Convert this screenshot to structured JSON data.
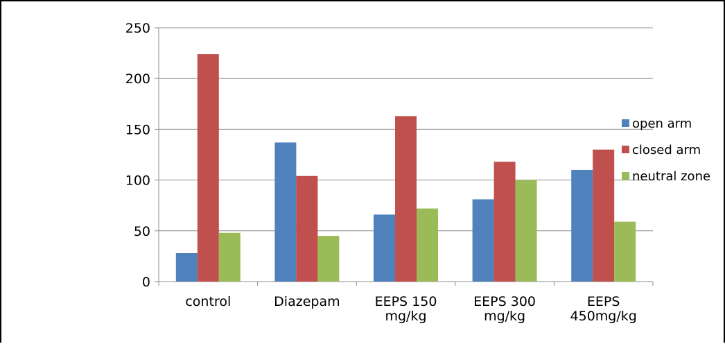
{
  "chart_data": {
    "type": "bar",
    "title": "",
    "xlabel": "",
    "ylabel": "",
    "categories": [
      [
        "control"
      ],
      [
        "Diazepam"
      ],
      [
        "EEPS 150",
        "mg/kg"
      ],
      [
        "EEPS 300",
        "mg/kg"
      ],
      [
        "EEPS",
        "450mg/kg"
      ]
    ],
    "ylim": [
      0,
      250
    ],
    "yticks": [
      0,
      50,
      100,
      150,
      200,
      250
    ],
    "grid": true,
    "legend_position": "right",
    "series": [
      {
        "name": "open arm",
        "color": "#4F81BD",
        "values": [
          28,
          137,
          66,
          81,
          110
        ]
      },
      {
        "name": "closed arm",
        "color": "#C0504D",
        "values": [
          224,
          104,
          163,
          118,
          130
        ]
      },
      {
        "name": "neutral zone",
        "color": "#9BBB59",
        "values": [
          48,
          45,
          72,
          100,
          59
        ]
      }
    ]
  }
}
